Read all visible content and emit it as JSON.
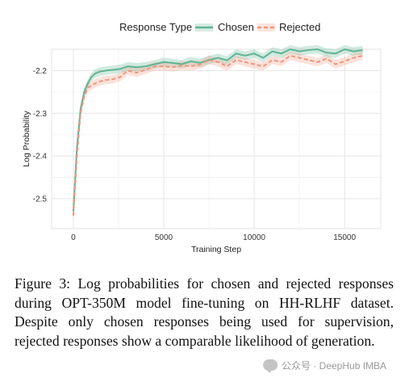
{
  "chart_data": {
    "type": "line",
    "title": "",
    "xlabel": "Training Step",
    "ylabel": "Log Probability",
    "xlim": [
      -1200,
      17000
    ],
    "ylim": [
      -2.57,
      -2.15
    ],
    "x_ticks": [
      0,
      5000,
      10000,
      15000
    ],
    "x_tick_labels": [
      "0",
      "5000",
      "10000",
      "15000"
    ],
    "y_ticks": [
      -2.2,
      -2.3,
      -2.4,
      -2.5
    ],
    "y_tick_labels": [
      "-2.2",
      "-2.3",
      "-2.4",
      "-2.5"
    ],
    "grid": true,
    "legend_title": "Response Type",
    "legend_position": "top",
    "series": [
      {
        "name": "Chosen",
        "color": "#5fb393",
        "line_style": "solid",
        "band_halfwidth": 0.01,
        "x": [
          0,
          200,
          400,
          600,
          800,
          1000,
          1200,
          1500,
          1800,
          2200,
          2600,
          3000,
          3500,
          4000,
          4500,
          5000,
          5500,
          6000,
          6500,
          7000,
          7500,
          8000,
          8500,
          9000,
          9500,
          10000,
          10500,
          11000,
          11500,
          12000,
          12500,
          13000,
          13500,
          14000,
          14500,
          15000,
          15500,
          16000
        ],
        "y": [
          -2.53,
          -2.38,
          -2.29,
          -2.25,
          -2.23,
          -2.215,
          -2.207,
          -2.202,
          -2.2,
          -2.198,
          -2.196,
          -2.19,
          -2.192,
          -2.19,
          -2.185,
          -2.18,
          -2.182,
          -2.185,
          -2.178,
          -2.182,
          -2.175,
          -2.17,
          -2.176,
          -2.16,
          -2.165,
          -2.16,
          -2.17,
          -2.155,
          -2.16,
          -2.15,
          -2.155,
          -2.152,
          -2.15,
          -2.158,
          -2.16,
          -2.15,
          -2.155,
          -2.152
        ]
      },
      {
        "name": "Rejected",
        "color": "#f0967c",
        "line_style": "dashed",
        "band_halfwidth": 0.01,
        "x": [
          0,
          200,
          400,
          600,
          800,
          1000,
          1200,
          1500,
          1800,
          2200,
          2600,
          3000,
          3500,
          4000,
          4500,
          5000,
          5500,
          6000,
          6500,
          7000,
          7500,
          8000,
          8500,
          9000,
          9500,
          10000,
          10500,
          11000,
          11500,
          12000,
          12500,
          13000,
          13500,
          14000,
          14500,
          15000,
          15500,
          16000
        ],
        "y": [
          -2.54,
          -2.4,
          -2.3,
          -2.26,
          -2.24,
          -2.235,
          -2.23,
          -2.225,
          -2.222,
          -2.22,
          -2.215,
          -2.2,
          -2.205,
          -2.198,
          -2.19,
          -2.19,
          -2.192,
          -2.188,
          -2.19,
          -2.186,
          -2.175,
          -2.18,
          -2.19,
          -2.175,
          -2.18,
          -2.185,
          -2.19,
          -2.175,
          -2.18,
          -2.165,
          -2.17,
          -2.175,
          -2.18,
          -2.172,
          -2.185,
          -2.178,
          -2.17,
          -2.165
        ]
      }
    ]
  },
  "caption": {
    "label": "Figure 3:",
    "text": "Log probabilities for chosen and rejected responses during OPT-350M model fine-tuning on HH-RLHF dataset. Despite only chosen responses being used for supervision, rejected responses show a comparable likelihood of generation."
  },
  "watermark": {
    "text": "公众号 · DeepHub IMBA",
    "icon": "chat-bubble-icon"
  }
}
